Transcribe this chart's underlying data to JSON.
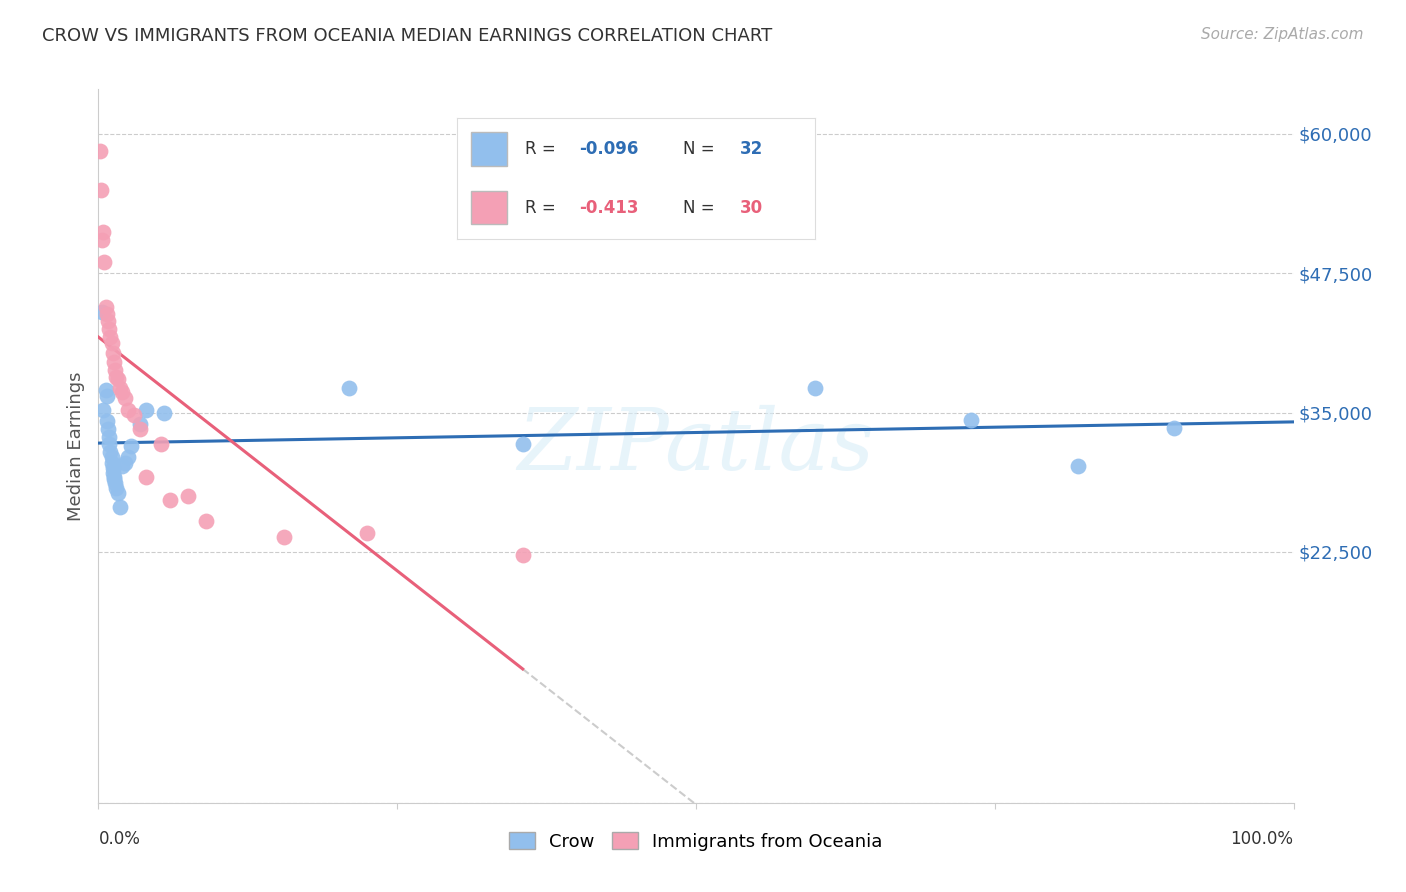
{
  "title": "CROW VS IMMIGRANTS FROM OCEANIA MEDIAN EARNINGS CORRELATION CHART",
  "source": "Source: ZipAtlas.com",
  "ylabel": "Median Earnings",
  "xmin": 0.0,
  "xmax": 1.0,
  "ymin": 8000,
  "ymax": 64000,
  "crow_color": "#92BFED",
  "oceania_color": "#F4A0B5",
  "crow_line_color": "#2E6DB4",
  "oceania_line_color": "#E8607A",
  "crow_R": "-0.096",
  "crow_N": "32",
  "oceania_R": "-0.413",
  "oceania_N": "30",
  "legend1_label": "Crow",
  "legend2_label": "Immigrants from Oceania",
  "watermark": "ZIPatlas",
  "crow_x": [
    0.003,
    0.004,
    0.006,
    0.007,
    0.007,
    0.008,
    0.009,
    0.009,
    0.01,
    0.011,
    0.011,
    0.012,
    0.012,
    0.013,
    0.013,
    0.014,
    0.015,
    0.016,
    0.018,
    0.02,
    0.022,
    0.025,
    0.027,
    0.035,
    0.04,
    0.055,
    0.21,
    0.355,
    0.6,
    0.73,
    0.82,
    0.9
  ],
  "crow_y": [
    44000,
    35200,
    37000,
    36500,
    34200,
    33500,
    32800,
    32200,
    31500,
    31000,
    30500,
    30000,
    29600,
    29200,
    29000,
    28700,
    28200,
    27800,
    26500,
    30200,
    30500,
    31000,
    32000,
    34000,
    35200,
    35000,
    37200,
    32200,
    37200,
    34300,
    30200,
    33600
  ],
  "oceania_x": [
    0.001,
    0.002,
    0.003,
    0.004,
    0.005,
    0.006,
    0.007,
    0.008,
    0.009,
    0.01,
    0.011,
    0.012,
    0.013,
    0.014,
    0.015,
    0.016,
    0.018,
    0.02,
    0.022,
    0.025,
    0.03,
    0.035,
    0.04,
    0.052,
    0.06,
    0.075,
    0.09,
    0.155,
    0.225,
    0.355
  ],
  "oceania_y": [
    58500,
    55000,
    50500,
    51200,
    48500,
    44500,
    43800,
    43200,
    42500,
    41800,
    41200,
    40300,
    39500,
    38800,
    38200,
    38000,
    37200,
    36800,
    36300,
    35200,
    34800,
    33500,
    29200,
    32200,
    27200,
    27500,
    25300,
    23800,
    24200,
    22200
  ],
  "ytick_positions": [
    0,
    22500,
    35000,
    47500,
    60000
  ],
  "ytick_labels": [
    "",
    "$22,500",
    "$35,000",
    "$47,500",
    "$60,000"
  ],
  "grid_color": "#cccccc",
  "bg_color": "#ffffff"
}
